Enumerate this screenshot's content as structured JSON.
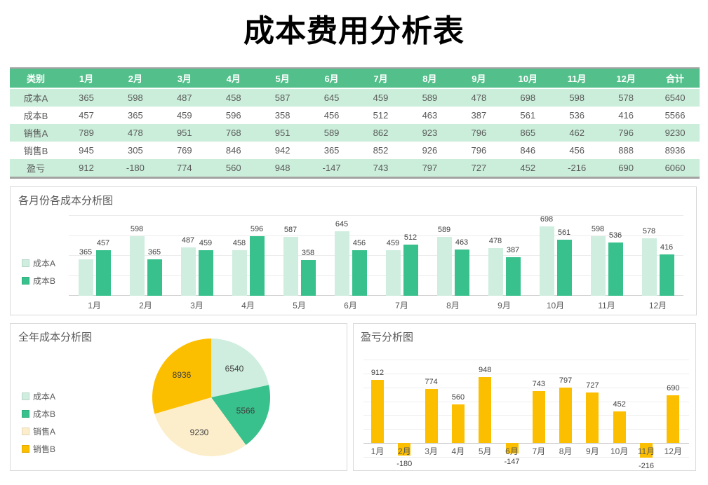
{
  "page_title": "成本费用分析表",
  "colors": {
    "table_header_bg": "#53c08b",
    "table_row_alt_bg": "#cbeeda",
    "table_border": "#a3a3a3",
    "panel_border": "#d9d9d9",
    "series_cost_a": "#cfeedf",
    "series_cost_b": "#38c18c",
    "series_sales_a": "#fdeecb",
    "series_sales_b": "#fcbf00",
    "text_primary": "#595959",
    "data_label": "#404040"
  },
  "chart_data": [
    {
      "type": "table",
      "title": "成本费用分析表",
      "columns": [
        "类别",
        "1月",
        "2月",
        "3月",
        "4月",
        "5月",
        "6月",
        "7月",
        "8月",
        "9月",
        "10月",
        "11月",
        "12月",
        "合计"
      ],
      "rows": [
        {
          "label": "成本A",
          "values": [
            365,
            598,
            487,
            458,
            587,
            645,
            459,
            589,
            478,
            698,
            598,
            578
          ],
          "total": 6540
        },
        {
          "label": "成本B",
          "values": [
            457,
            365,
            459,
            596,
            358,
            456,
            512,
            463,
            387,
            561,
            536,
            416
          ],
          "total": 5566
        },
        {
          "label": "销售A",
          "values": [
            789,
            478,
            951,
            768,
            951,
            589,
            862,
            923,
            796,
            865,
            462,
            796
          ],
          "total": 9230
        },
        {
          "label": "销售B",
          "values": [
            945,
            305,
            769,
            846,
            942,
            365,
            852,
            926,
            796,
            846,
            456,
            888
          ],
          "total": 8936
        },
        {
          "label": "盈亏",
          "values": [
            912,
            -180,
            774,
            560,
            948,
            -147,
            743,
            797,
            727,
            452,
            -216,
            690
          ],
          "total": 6060
        }
      ]
    },
    {
      "type": "bar",
      "title": "各月份各成本分析图",
      "categories": [
        "1月",
        "2月",
        "3月",
        "4月",
        "5月",
        "6月",
        "7月",
        "8月",
        "9月",
        "10月",
        "11月",
        "12月"
      ],
      "series": [
        {
          "name": "成本A",
          "color": "#cfeedf",
          "values": [
            365,
            598,
            487,
            458,
            587,
            645,
            459,
            589,
            478,
            698,
            598,
            578
          ]
        },
        {
          "name": "成本B",
          "color": "#38c18c",
          "values": [
            457,
            365,
            459,
            596,
            358,
            456,
            512,
            463,
            387,
            561,
            536,
            416
          ]
        }
      ],
      "ylim": [
        0,
        800
      ],
      "grid_step": 200,
      "grid": "on",
      "legend_position": "left"
    },
    {
      "type": "pie",
      "title": "全年成本分析图",
      "slices": [
        {
          "name": "成本A",
          "value": 6540,
          "color": "#cfeedf"
        },
        {
          "name": "成本B",
          "value": 5566,
          "color": "#38c18c"
        },
        {
          "name": "销售A",
          "value": 9230,
          "color": "#fdeecb"
        },
        {
          "name": "销售B",
          "value": 8936,
          "color": "#fcbf00"
        }
      ],
      "start_angle": "top",
      "direction": "clockwise",
      "legend_position": "left"
    },
    {
      "type": "bar",
      "title": "盈亏分析图",
      "categories": [
        "1月",
        "2月",
        "3月",
        "4月",
        "5月",
        "6月",
        "7月",
        "8月",
        "9月",
        "10月",
        "11月",
        "12月"
      ],
      "values": [
        912,
        -180,
        774,
        560,
        948,
        -147,
        743,
        797,
        727,
        452,
        -216,
        690
      ],
      "color": "#fcbf00",
      "ylim": [
        -300,
        1200
      ],
      "grid_step": 200,
      "grid": "on",
      "legend_position": "none"
    }
  ]
}
